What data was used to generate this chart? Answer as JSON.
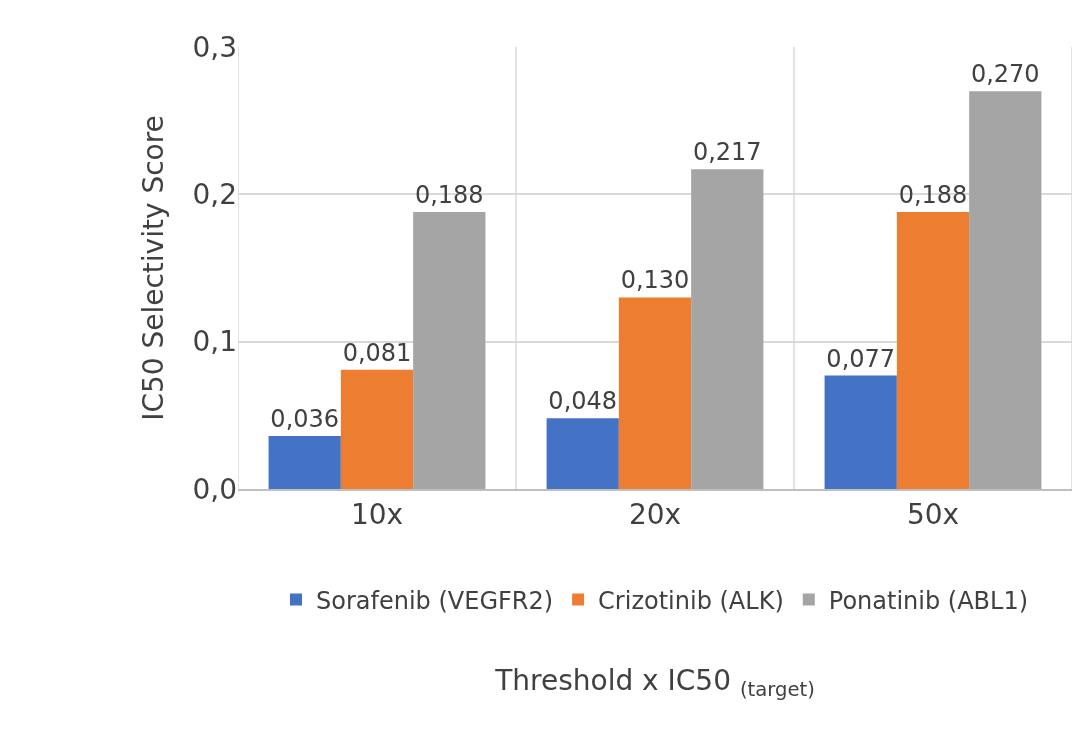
{
  "chart_data": {
    "type": "bar",
    "xlabel": "Threshold x IC50 $_{(target)}$",
    "ylabel": "IC50 Selectivity Score",
    "categories": [
      "10x",
      "20x",
      "50x"
    ],
    "series": [
      {
        "name": "Sorafenib (VEGFR2)",
        "color": "#4472c4",
        "values": [
          0.036,
          0.048,
          0.077
        ],
        "value_labels": [
          "0,036",
          "0,048",
          "0,077"
        ]
      },
      {
        "name": "Crizotinib (ALK)",
        "color": "#ed7d31",
        "values": [
          0.081,
          0.13,
          0.188
        ],
        "value_labels": [
          "0,081",
          "0,130",
          "0,188"
        ]
      },
      {
        "name": "Ponatinib (ABL1)",
        "color": "#a5a5a5",
        "values": [
          0.188,
          0.217,
          0.27
        ],
        "value_labels": [
          "0,188",
          "0,217",
          "0,270"
        ]
      }
    ],
    "ylim": [
      0,
      0.3
    ],
    "yticks": [
      {
        "value": 0,
        "label": "0,0"
      },
      {
        "value": 0.1,
        "label": "0,1"
      },
      {
        "value": 0.2,
        "label": "0,2"
      },
      {
        "value": 0.3,
        "label": "0,3"
      }
    ],
    "grid": true,
    "legend": "bottom"
  }
}
